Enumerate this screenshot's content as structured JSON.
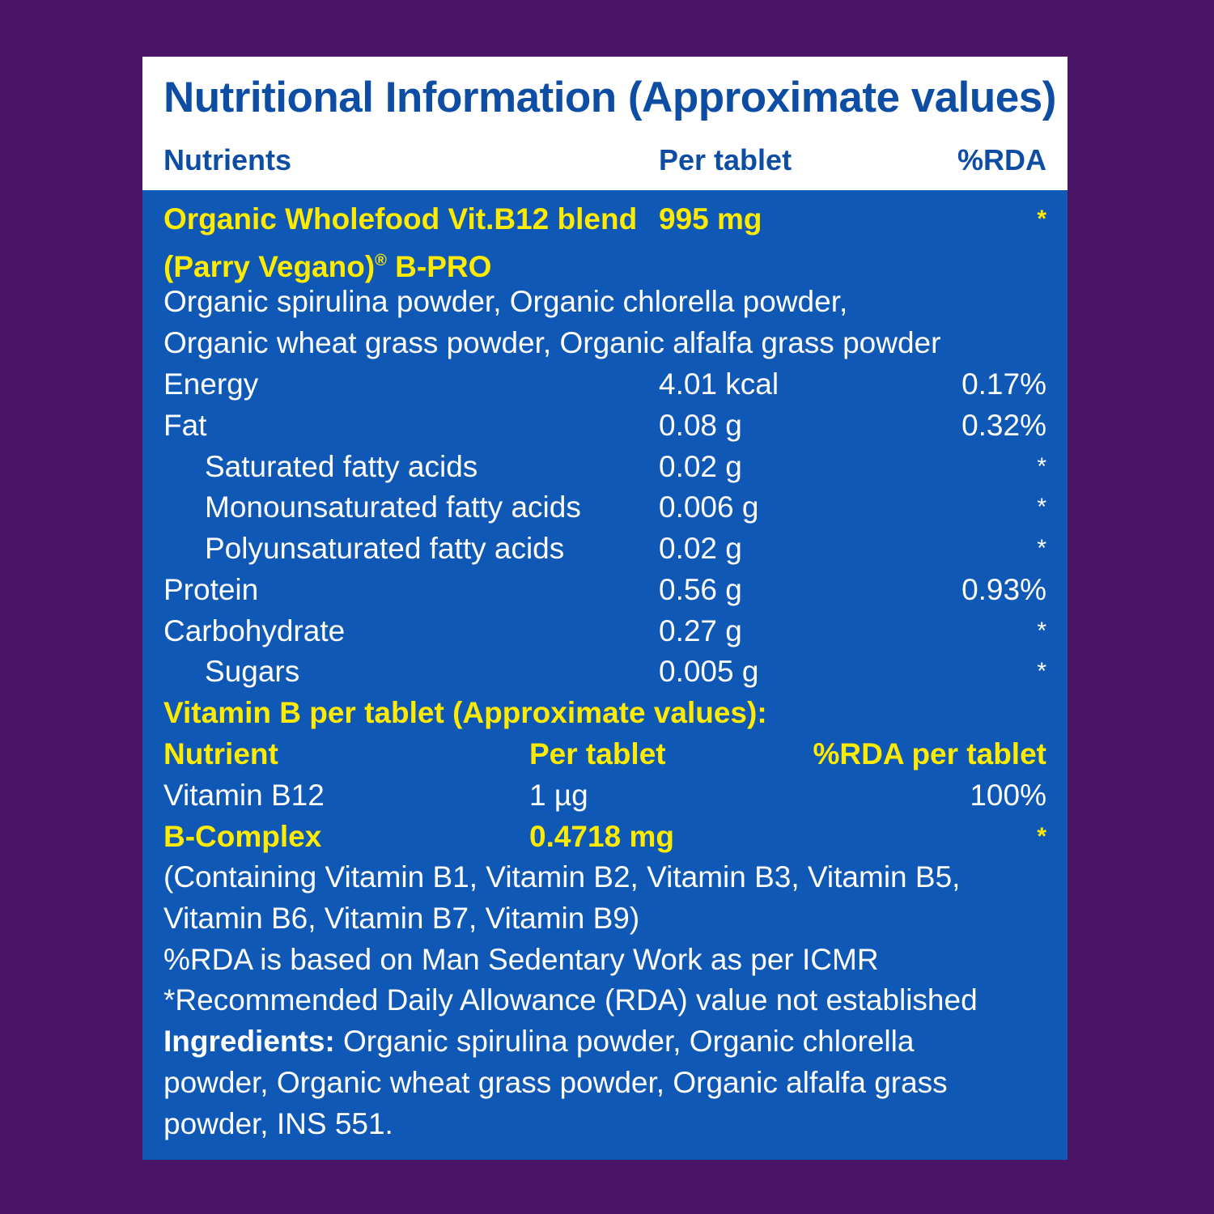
{
  "title": "Nutritional Information (Approximate values)",
  "columns": {
    "nutrients": "Nutrients",
    "per_tablet": "Per tablet",
    "rda": "%RDA"
  },
  "blend": {
    "name": "Organic Wholefood Vit.B12 blend",
    "amount": "995 mg",
    "rda": "*",
    "brand": "(Parry Vegano)",
    "reg_mark": "®",
    "brand_suffix": " B-PRO",
    "contents_line1": "Organic spirulina powder, Organic chlorella powder,",
    "contents_line2": "Organic wheat grass powder, Organic alfalfa grass powder"
  },
  "nutrients": [
    {
      "name": "Energy",
      "amount": "4.01 kcal",
      "rda": "0.17%"
    },
    {
      "name": "Fat",
      "amount": "0.08 g",
      "rda": "0.32%"
    },
    {
      "name": "Saturated fatty acids",
      "amount": "0.02 g",
      "rda": "*"
    },
    {
      "name": "Monounsaturated fatty acids",
      "amount": "0.006 g",
      "rda": "*"
    },
    {
      "name": "Polyunsaturated fatty acids",
      "amount": "0.02 g",
      "rda": "*"
    },
    {
      "name": "Protein",
      "amount": "0.56 g",
      "rda": "0.93%"
    },
    {
      "name": "Carbohydrate",
      "amount": "0.27 g",
      "rda": "*"
    },
    {
      "name": "Sugars",
      "amount": "0.005 g",
      "rda": "*"
    }
  ],
  "vitamin_section": {
    "heading": "Vitamin B per tablet (Approximate values):",
    "col_nutrient": "Nutrient",
    "col_per_tablet": "Per tablet",
    "col_rda": "%RDA per tablet",
    "b12": {
      "name": "Vitamin B12",
      "amount": "1 µg",
      "rda": "100%"
    },
    "bcomplex": {
      "name": "B-Complex",
      "amount": "0.4718 mg",
      "rda": "*"
    },
    "bcomplex_note_line1": "(Containing Vitamin B1, Vitamin B2, Vitamin B3, Vitamin B5,",
    "bcomplex_note_line2": "Vitamin B6, Vitamin B7, Vitamin B9)"
  },
  "notes": {
    "rda_basis": "%RDA is based on Man Sedentary Work as per ICMR",
    "rda_not_established": "*Recommended Daily Allowance (RDA) value not established"
  },
  "ingredients": {
    "label": "Ingredients:",
    "line1": " Organic spirulina powder, Organic chlorella",
    "line2": "powder, Organic wheat grass powder, Organic alfalfa grass",
    "line3": "powder, INS 551."
  }
}
